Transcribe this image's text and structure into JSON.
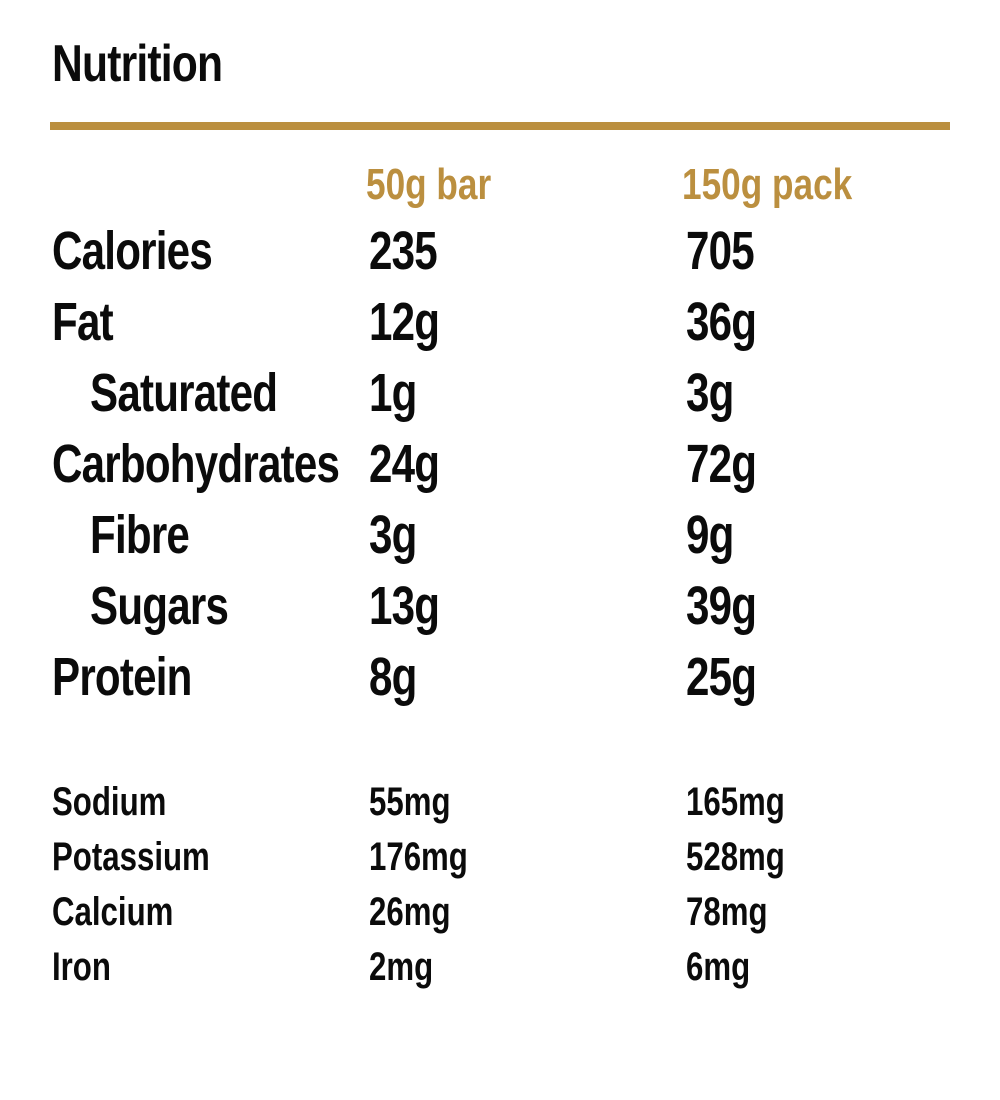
{
  "title": "Nutrition",
  "accent_color": "#bb8f3f",
  "columns": [
    "50g bar",
    "150g pack"
  ],
  "main_rows": [
    {
      "label": "Calories",
      "bar": "235",
      "pack": "705",
      "indent": false
    },
    {
      "label": "Fat",
      "bar": "12g",
      "pack": "36g",
      "indent": false
    },
    {
      "label": "Saturated",
      "bar": "1g",
      "pack": "3g",
      "indent": true
    },
    {
      "label": "Carbohydrates",
      "bar": "24g",
      "pack": "72g",
      "indent": false
    },
    {
      "label": "Fibre",
      "bar": "3g",
      "pack": "9g",
      "indent": true
    },
    {
      "label": "Sugars",
      "bar": "13g",
      "pack": "39g",
      "indent": true
    },
    {
      "label": "Protein",
      "bar": "8g",
      "pack": "25g",
      "indent": false
    }
  ],
  "minerals": [
    {
      "label": "Sodium",
      "bar": "55mg",
      "pack": "165mg"
    },
    {
      "label": "Potassium",
      "bar": "176mg",
      "pack": "528mg"
    },
    {
      "label": "Calcium",
      "bar": "26mg",
      "pack": "78mg"
    },
    {
      "label": "Iron",
      "bar": "2mg",
      "pack": "6mg"
    }
  ]
}
